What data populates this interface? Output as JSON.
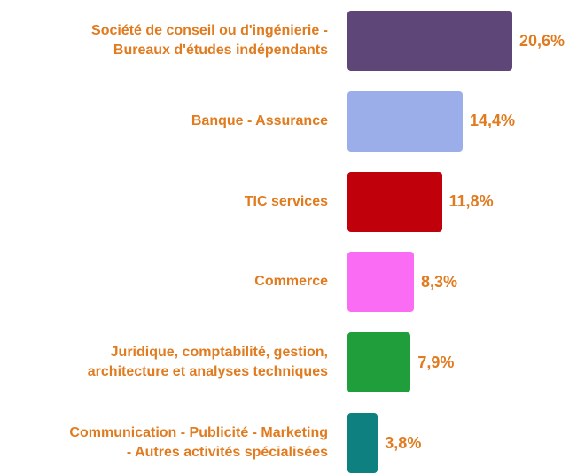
{
  "chart_data": {
    "type": "bar",
    "orientation": "horizontal",
    "categories": [
      "Société de conseil ou d'ingénierie -\nBureaux d'études indépendants",
      "Banque - Assurance",
      "TIC services",
      "Commerce",
      "Juridique, comptabilité, gestion,\narchitecture et analyses techniques",
      "Communication - Publicité - Marketing\n- Autres activités spécialisées"
    ],
    "values": [
      20.6,
      14.4,
      11.8,
      8.3,
      7.9,
      3.8
    ],
    "value_labels": [
      "20,6%",
      "14,4%",
      "11,8%",
      "8,3%",
      "7,9%",
      "3,8%"
    ],
    "colors": [
      "#5e4778",
      "#9baeea",
      "#c0000b",
      "#fb6cf5",
      "#1f9e3b",
      "#0f8080"
    ]
  }
}
